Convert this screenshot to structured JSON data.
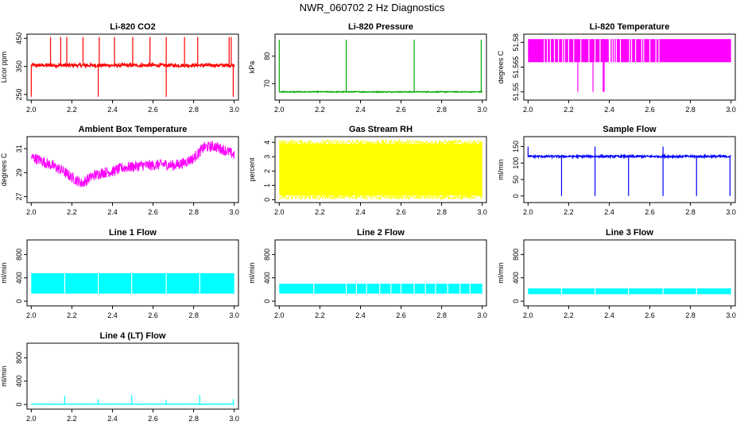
{
  "page_title": "NWR_060702  2 Hz Diagnostics",
  "chart_data": [
    {
      "type": "line",
      "title": "Li-820 CO2",
      "ylabel": "Licor ppm",
      "color": "#ff0000",
      "xlim": [
        2.0,
        3.0
      ],
      "ylim": [
        230,
        465
      ],
      "yticks": [
        250,
        350,
        450
      ],
      "xticks": [
        "2.0",
        "2.2",
        "2.4",
        "2.6",
        "2.8",
        "3.0"
      ],
      "baseline": 354,
      "noise": 6,
      "spikes_up": [
        2.095,
        2.145,
        2.175,
        2.255,
        2.335,
        2.41,
        2.5,
        2.585,
        2.665,
        2.755,
        2.82,
        2.975,
        2.985
      ],
      "spikes_up_to": 455,
      "spikes_down": [
        2.0,
        2.33,
        2.665,
        2.995
      ],
      "spikes_down_to": 242
    },
    {
      "type": "line",
      "title": "Li-820 Pressure",
      "ylabel": "kPa",
      "color": "#00aa00",
      "xlim": [
        2.0,
        3.0
      ],
      "ylim": [
        64,
        88
      ],
      "yticks": [
        70,
        80
      ],
      "xticks": [
        "2.0",
        "2.2",
        "2.4",
        "2.6",
        "2.8",
        "3.0"
      ],
      "baseline": 67,
      "noise": 0.15,
      "spikes_up": [
        2.0,
        2.33,
        2.665,
        2.995
      ],
      "spikes_up_to": 86
    },
    {
      "type": "line",
      "title": "Li-820 Temperature",
      "ylabel": "degrees C",
      "color": "#ff00ff",
      "xlim": [
        2.0,
        3.0
      ],
      "ylim": [
        51.545,
        51.585
      ],
      "yticks": [
        51.55,
        51.565,
        51.58
      ],
      "ytick_labels": [
        "51.55",
        "51.565",
        "51.58"
      ],
      "xticks": [
        "2.0",
        "2.2",
        "2.4",
        "2.6",
        "2.8",
        "3.0"
      ],
      "band": [
        51.568,
        51.582
      ],
      "gaps": [
        2.08,
        2.095,
        2.11,
        2.13,
        2.15,
        2.17,
        2.18,
        2.2,
        2.225,
        2.26,
        2.3,
        2.33,
        2.355,
        2.4,
        2.405,
        2.415,
        2.425,
        2.435,
        2.455,
        2.5,
        2.51,
        2.53,
        2.56,
        2.57,
        2.6,
        2.63,
        2.645
      ],
      "spikes_down": [
        2.245,
        2.32,
        2.37,
        2.375
      ],
      "spikes_down_to": 51.55
    },
    {
      "type": "line",
      "title": "Ambient Box Temperature",
      "ylabel": "degrees C",
      "color": "#ff00ff",
      "xlim": [
        2.0,
        3.0
      ],
      "ylim": [
        26.5,
        32.0
      ],
      "yticks": [
        27,
        29,
        31
      ],
      "xticks": [
        "2.0",
        "2.2",
        "2.4",
        "2.6",
        "2.8",
        "3.0"
      ],
      "trend_x": [
        2.0,
        2.05,
        2.1,
        2.15,
        2.2,
        2.25,
        2.3,
        2.35,
        2.4,
        2.45,
        2.5,
        2.55,
        2.6,
        2.65,
        2.7,
        2.75,
        2.8,
        2.85,
        2.9,
        2.95,
        3.0
      ],
      "trend_y": [
        30.3,
        30.0,
        29.6,
        29.2,
        28.6,
        28.1,
        28.7,
        29.0,
        29.1,
        29.4,
        29.5,
        29.6,
        29.6,
        29.7,
        29.6,
        29.8,
        30.2,
        31.1,
        31.2,
        30.9,
        30.5
      ],
      "noise": 0.45
    },
    {
      "type": "line",
      "title": "Gas Stream RH",
      "ylabel": "percent",
      "color": "#ffff00",
      "xlim": [
        2.0,
        3.0
      ],
      "ylim": [
        -0.2,
        4.4
      ],
      "yticks": [
        0,
        1,
        2,
        3,
        4
      ],
      "xticks": [
        "2.0",
        "2.2",
        "2.4",
        "2.6",
        "2.8",
        "3.0"
      ],
      "band": [
        0.3,
        3.9
      ],
      "noise": 0.2
    },
    {
      "type": "line",
      "title": "Sample Flow",
      "ylabel": "ml/min",
      "color": "#0000ff",
      "xlim": [
        2.0,
        3.0
      ],
      "ylim": [
        -20,
        180
      ],
      "yticks": [
        0,
        50,
        100,
        150
      ],
      "xticks": [
        "2.0",
        "2.2",
        "2.4",
        "2.6",
        "2.8",
        "3.0"
      ],
      "baseline": 120,
      "noise": 3,
      "spikes_up": [
        2.0,
        2.33,
        2.665
      ],
      "spikes_up_to": 150,
      "spikes_down": [
        2.165,
        2.33,
        2.495,
        2.665,
        2.83,
        2.995
      ],
      "spikes_down_to": 0
    },
    {
      "type": "line",
      "title": "Line 1 Flow",
      "ylabel": "ml/min",
      "color": "#00ffff",
      "xlim": [
        2.0,
        3.0
      ],
      "ylim": [
        -80,
        1050
      ],
      "yticks": [
        0,
        400,
        800
      ],
      "xticks": [
        "2.0",
        "2.2",
        "2.4",
        "2.6",
        "2.8",
        "3.0"
      ],
      "band": [
        130,
        480
      ],
      "gaps": [
        2.165,
        2.33,
        2.495,
        2.665,
        2.83
      ]
    },
    {
      "type": "line",
      "title": "Line 2 Flow",
      "ylabel": "ml/min",
      "color": "#00ffff",
      "xlim": [
        2.0,
        3.0
      ],
      "ylim": [
        -80,
        1050
      ],
      "yticks": [
        0,
        400,
        800
      ],
      "xticks": [
        "2.0",
        "2.2",
        "2.4",
        "2.6",
        "2.8",
        "3.0"
      ],
      "band": [
        130,
        300
      ],
      "gaps": [
        2.17,
        2.33,
        2.38,
        2.43,
        2.495,
        2.55,
        2.6,
        2.665,
        2.72,
        2.77,
        2.83,
        2.89,
        2.94
      ]
    },
    {
      "type": "line",
      "title": "Line 3 Flow",
      "ylabel": "ml/min",
      "color": "#00ffff",
      "xlim": [
        2.0,
        3.0
      ],
      "ylim": [
        -80,
        1050
      ],
      "yticks": [
        0,
        400,
        800
      ],
      "xticks": [
        "2.0",
        "2.2",
        "2.4",
        "2.6",
        "2.8",
        "3.0"
      ],
      "band": [
        120,
        220
      ],
      "gaps": [
        2.165,
        2.33,
        2.495,
        2.665,
        2.83
      ]
    },
    {
      "type": "line",
      "title": "Line 4 (LT) Flow",
      "ylabel": "ml/min",
      "color": "#00ffff",
      "xlim": [
        2.0,
        3.0
      ],
      "ylim": [
        -80,
        1050
      ],
      "yticks": [
        0,
        400,
        800
      ],
      "xticks": [
        "2.0",
        "2.2",
        "2.4",
        "2.6",
        "2.8",
        "3.0"
      ],
      "baseline": 5,
      "noise": 2,
      "spikes": [
        [
          2.165,
          150
        ],
        [
          2.33,
          90
        ],
        [
          2.495,
          160
        ],
        [
          2.665,
          80
        ],
        [
          2.83,
          160
        ],
        [
          2.995,
          90
        ]
      ]
    }
  ]
}
